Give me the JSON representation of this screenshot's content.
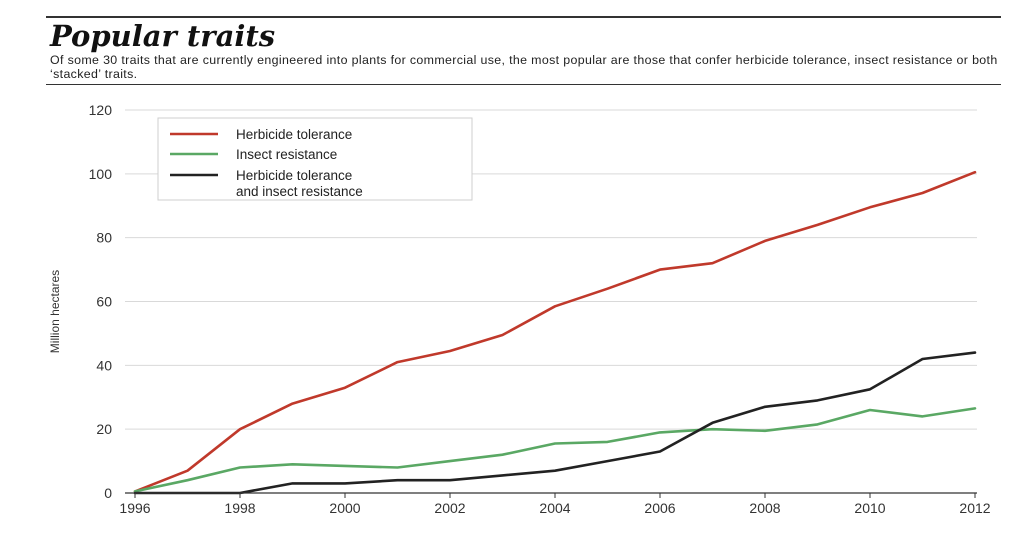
{
  "header": {
    "title": "Popular traits",
    "subtitle": "Of some 30 traits that are currently engineered into plants for commercial use, the most popular are those that confer herbicide tolerance, insect resistance or both ‘stacked’ traits."
  },
  "chart_data": {
    "type": "line",
    "title": "Popular traits",
    "xlabel": "",
    "ylabel": "Million hectares",
    "xlim": [
      1996,
      2012
    ],
    "ylim": [
      0,
      120
    ],
    "x_ticks": [
      1996,
      1998,
      2000,
      2002,
      2004,
      2006,
      2008,
      2010,
      2012
    ],
    "y_ticks": [
      0,
      20,
      40,
      60,
      80,
      100,
      120
    ],
    "grid": true,
    "legend_position": "top-left",
    "x": [
      1996,
      1997,
      1998,
      1999,
      2000,
      2001,
      2002,
      2003,
      2004,
      2005,
      2006,
      2007,
      2008,
      2009,
      2010,
      2011,
      2012
    ],
    "series": [
      {
        "name": "Herbicide tolerance",
        "color": "#c0392b",
        "values": [
          0.5,
          7,
          20,
          28,
          33,
          41,
          44.5,
          49.5,
          58.5,
          64,
          70,
          72,
          79,
          84,
          89.5,
          94,
          100.5
        ]
      },
      {
        "name": "Insect resistance",
        "color": "#5aa864",
        "values": [
          0.5,
          4,
          8,
          9,
          8.5,
          8,
          10,
          12,
          15.5,
          16,
          19,
          20,
          19.5,
          21.5,
          26,
          24,
          26.5
        ]
      },
      {
        "name": "Herbicide tolerance\nand insect resistance",
        "color": "#222222",
        "values": [
          0,
          0,
          0,
          3,
          3,
          4,
          4,
          5.5,
          7,
          10,
          13,
          22,
          27,
          29,
          32.5,
          42,
          44
        ]
      }
    ]
  }
}
